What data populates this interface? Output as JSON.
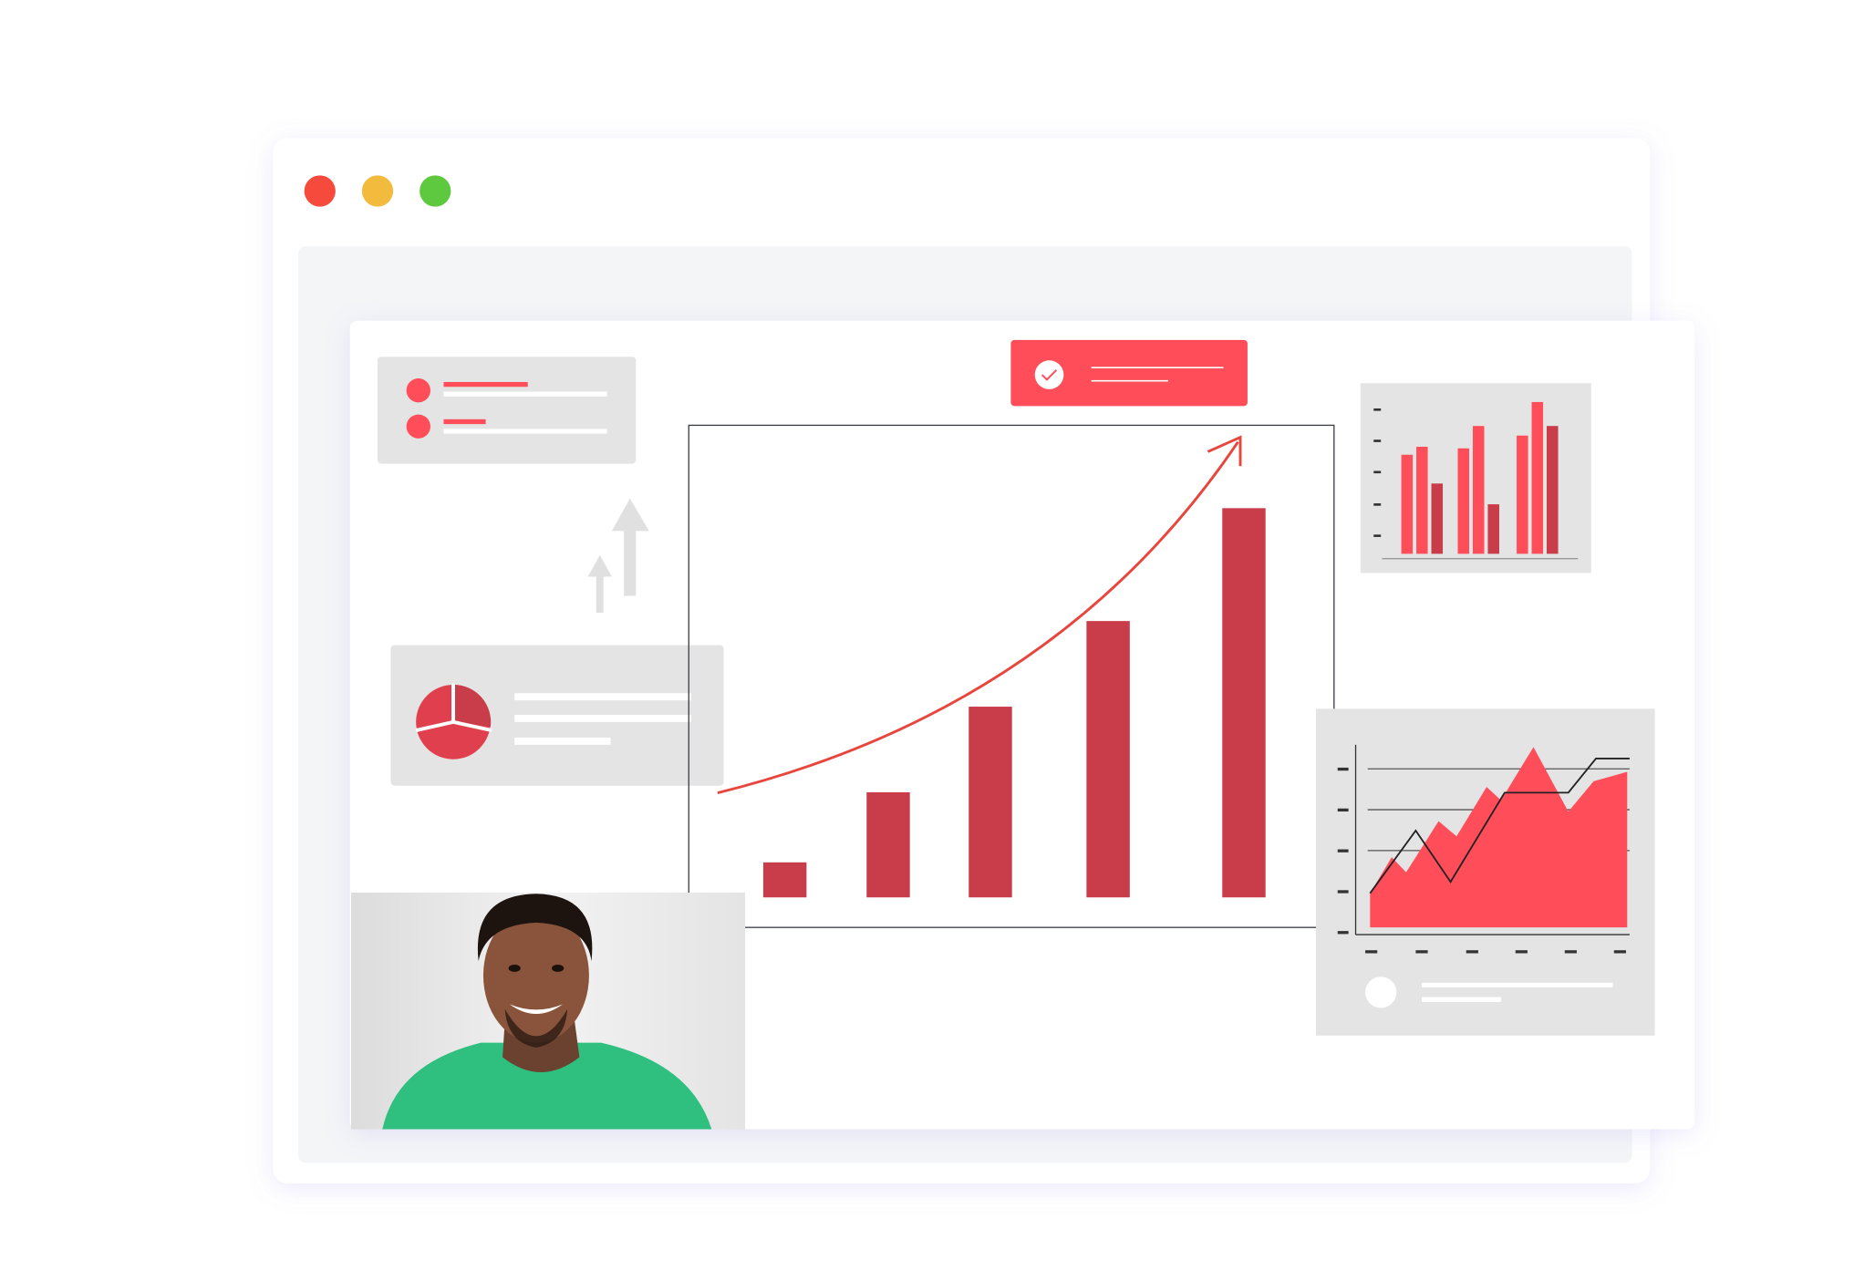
{
  "window": {
    "controls": [
      {
        "name": "close",
        "color": "#f64b3c"
      },
      {
        "name": "minimize",
        "color": "#f2bb3d"
      },
      {
        "name": "maximize",
        "color": "#5ec83f"
      }
    ],
    "frame_color": "#ffffff",
    "panel_color": "#f4f5f7"
  },
  "colors": {
    "accent": "#ff4d5a",
    "bar": "#c93c4a",
    "bar_dark": "#c93c4a",
    "card": "#e4e4e4",
    "trend_line": "#e8453c",
    "arrow": "#e0e0e0",
    "shirt": "#2fbf7e"
  },
  "icons": {
    "badge": "check-circle-icon",
    "growth": "arrow-up-icon",
    "pie": "pie-chart-icon"
  },
  "chart_data": [
    {
      "type": "bar",
      "description_level": "relative",
      "values": [
        9,
        27,
        49,
        71,
        100
      ],
      "trend": "rising-curve-arrow"
    },
    {
      "type": "bar",
      "groups": [
        [
          62,
          67,
          44
        ],
        [
          66,
          80,
          31
        ],
        [
          74,
          95,
          80
        ]
      ]
    },
    {
      "type": "area",
      "area_values": [
        18,
        37,
        29,
        56,
        48,
        74,
        67,
        95,
        61,
        77,
        82
      ],
      "line_values": [
        18,
        51,
        24,
        71,
        71,
        89,
        89
      ]
    }
  ]
}
